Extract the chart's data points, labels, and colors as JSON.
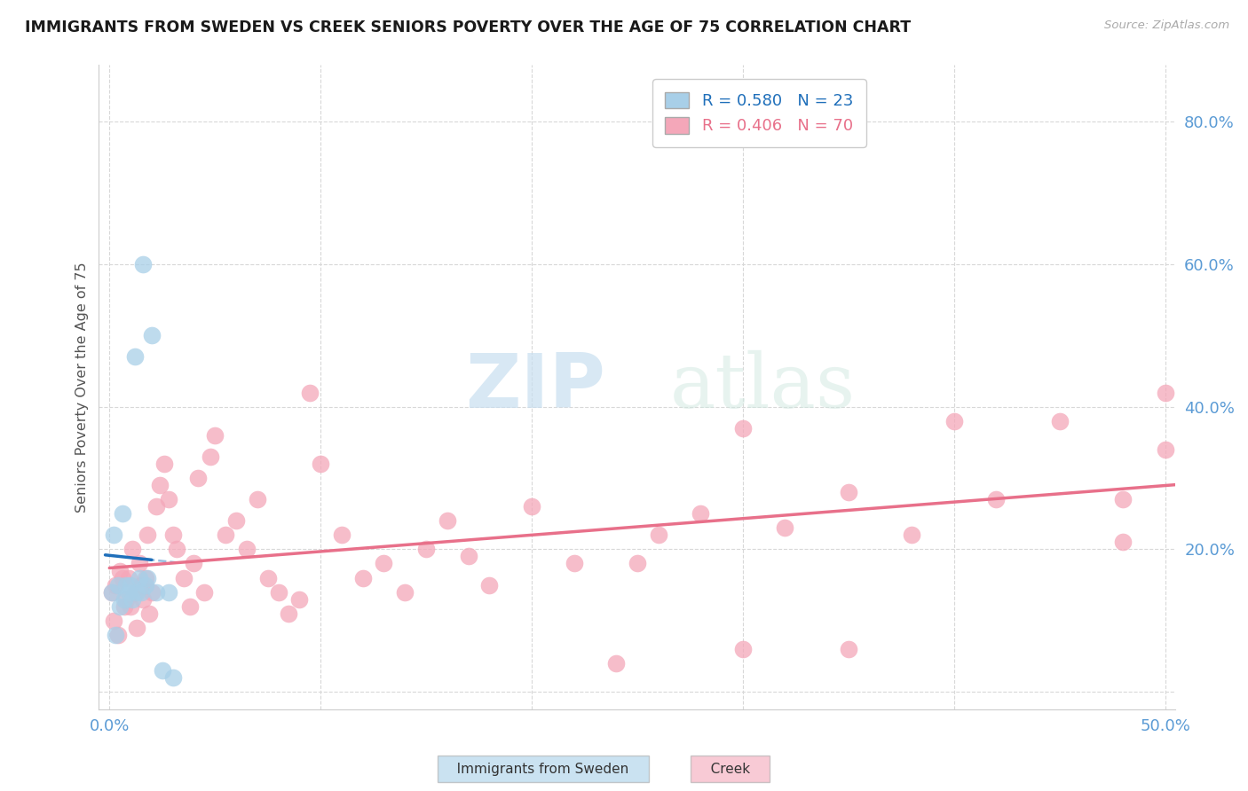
{
  "title": "IMMIGRANTS FROM SWEDEN VS CREEK SENIORS POVERTY OVER THE AGE OF 75 CORRELATION CHART",
  "source": "Source: ZipAtlas.com",
  "ylabel": "Seniors Poverty Over the Age of 75",
  "xlim": [
    -0.005,
    0.505
  ],
  "ylim": [
    -0.025,
    0.88
  ],
  "xticks": [
    0.0,
    0.1,
    0.2,
    0.3,
    0.4,
    0.5
  ],
  "xticklabels": [
    "0.0%",
    "",
    "",
    "",
    "",
    "50.0%"
  ],
  "yticks": [
    0.0,
    0.2,
    0.4,
    0.6,
    0.8
  ],
  "yticklabels": [
    "",
    "20.0%",
    "40.0%",
    "60.0%",
    "80.0%"
  ],
  "sweden_color": "#a8cfe8",
  "creek_color": "#f4a7b9",
  "sweden_line_color": "#1f6fba",
  "creek_line_color": "#e8708a",
  "tick_color": "#5b9bd5",
  "sweden_R": 0.58,
  "sweden_N": 23,
  "creek_R": 0.406,
  "creek_N": 70,
  "sweden_scatter_x": [
    0.001,
    0.002,
    0.003,
    0.004,
    0.005,
    0.006,
    0.007,
    0.008,
    0.009,
    0.01,
    0.011,
    0.012,
    0.013,
    0.014,
    0.015,
    0.016,
    0.017,
    0.018,
    0.02,
    0.022,
    0.025,
    0.028,
    0.03
  ],
  "sweden_scatter_y": [
    0.14,
    0.22,
    0.08,
    0.15,
    0.12,
    0.25,
    0.13,
    0.15,
    0.14,
    0.15,
    0.13,
    0.47,
    0.14,
    0.16,
    0.14,
    0.6,
    0.15,
    0.16,
    0.5,
    0.14,
    0.03,
    0.14,
    0.02
  ],
  "creek_scatter_x": [
    0.001,
    0.002,
    0.003,
    0.004,
    0.005,
    0.006,
    0.007,
    0.008,
    0.009,
    0.01,
    0.011,
    0.012,
    0.013,
    0.014,
    0.015,
    0.016,
    0.017,
    0.018,
    0.019,
    0.02,
    0.022,
    0.024,
    0.026,
    0.028,
    0.03,
    0.032,
    0.035,
    0.038,
    0.04,
    0.042,
    0.045,
    0.048,
    0.05,
    0.055,
    0.06,
    0.065,
    0.07,
    0.075,
    0.08,
    0.085,
    0.09,
    0.095,
    0.1,
    0.11,
    0.12,
    0.13,
    0.14,
    0.15,
    0.16,
    0.17,
    0.18,
    0.2,
    0.22,
    0.24,
    0.26,
    0.28,
    0.3,
    0.32,
    0.35,
    0.38,
    0.4,
    0.42,
    0.45,
    0.48,
    0.5,
    0.5,
    0.48,
    0.35,
    0.3,
    0.25
  ],
  "creek_scatter_y": [
    0.14,
    0.1,
    0.15,
    0.08,
    0.17,
    0.16,
    0.12,
    0.13,
    0.16,
    0.12,
    0.2,
    0.14,
    0.09,
    0.18,
    0.15,
    0.13,
    0.16,
    0.22,
    0.11,
    0.14,
    0.26,
    0.29,
    0.32,
    0.27,
    0.22,
    0.2,
    0.16,
    0.12,
    0.18,
    0.3,
    0.14,
    0.33,
    0.36,
    0.22,
    0.24,
    0.2,
    0.27,
    0.16,
    0.14,
    0.11,
    0.13,
    0.42,
    0.32,
    0.22,
    0.16,
    0.18,
    0.14,
    0.2,
    0.24,
    0.19,
    0.15,
    0.26,
    0.18,
    0.04,
    0.22,
    0.25,
    0.37,
    0.23,
    0.28,
    0.22,
    0.38,
    0.27,
    0.38,
    0.21,
    0.42,
    0.34,
    0.27,
    0.06,
    0.06,
    0.18
  ],
  "watermark_zip": "ZIP",
  "watermark_atlas": "atlas",
  "background_color": "#ffffff",
  "grid_color": "#d8d8d8",
  "legend_box_color": "#f0f0f0"
}
